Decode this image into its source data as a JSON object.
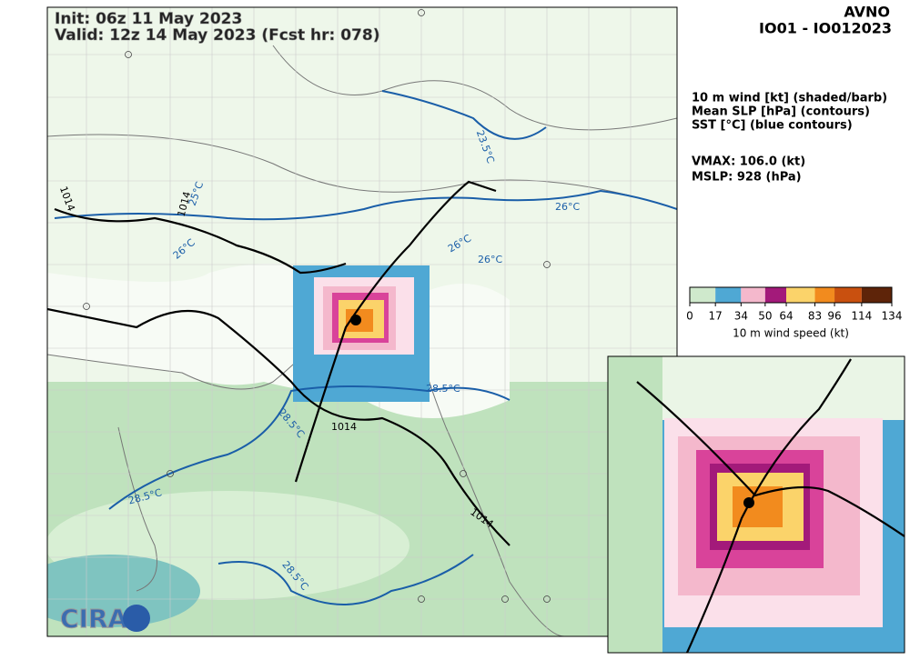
{
  "header": {
    "init": "Init:   06z 11 May 2023",
    "valid": "Valid: 12z 14 May 2023 (Fcst hr: 078)",
    "model": "AVNO",
    "storm_id": "IO01 - IO012023"
  },
  "legend": {
    "lines": [
      "10 m wind [kt] (shaded/barb)",
      "Mean SLP [hPa] (contours)",
      "SST [°C] (blue contours)"
    ],
    "vmax": "VMAX: 106.0 (kt)",
    "mslp": "MSLP:  928 (hPa)"
  },
  "colorbar": {
    "label": "10 m wind speed (kt)",
    "range": [
      0,
      134
    ],
    "ticks": [
      0,
      17,
      34,
      50,
      64,
      83,
      96,
      114,
      134
    ],
    "colors": [
      "#cfe9cc",
      "#4fa8d4",
      "#f4b8cc",
      "#a31a7a",
      "#fbd36a",
      "#f28b1e",
      "#c9500f",
      "#5e2409"
    ]
  },
  "contour_labels": {
    "sst_26_a": "26°C",
    "sst_26_b": "26°C",
    "sst_26_c": "26°C",
    "sst_26_d": "26°C",
    "sst_28_a": "28.5°C",
    "sst_28_b": "28.5°C",
    "sst_28_c": "28.5°C",
    "sst_28_d": "28.5°C",
    "sst_25": "25°C",
    "sst_23": "23.5°C",
    "slp_a": "1014",
    "slp_b": "1014",
    "slp_c": "1014",
    "slp_d": "1014"
  },
  "logo": "CIRA"
}
